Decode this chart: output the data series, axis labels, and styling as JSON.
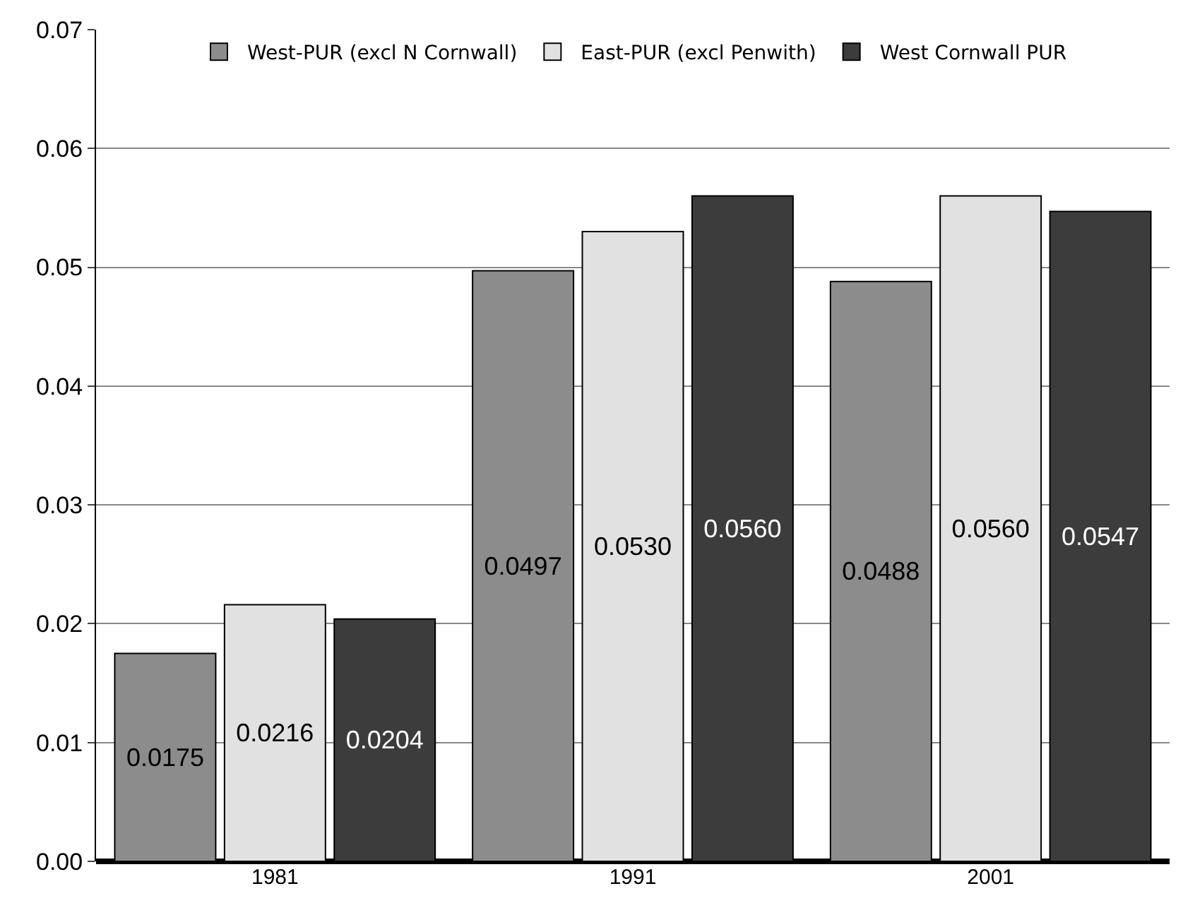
{
  "chart_data": {
    "type": "bar",
    "categories": [
      "1981",
      "1991",
      "2001"
    ],
    "series": [
      {
        "name": "West-PUR (excl N Cornwall)",
        "color": "#8c8c8c",
        "values": [
          0.0175,
          0.0497,
          0.0488
        ],
        "value_labels": [
          "0.0175",
          "0.0497",
          "0.0488"
        ]
      },
      {
        "name": "East-PUR (excl Penwith)",
        "color": "#e1e1e1",
        "values": [
          0.0216,
          0.053,
          0.056
        ],
        "value_labels": [
          "0.0216",
          "0.0530",
          "0.0560"
        ]
      },
      {
        "name": "West Cornwall PUR",
        "color": "#3c3c3c",
        "values": [
          0.0204,
          0.056,
          0.0547
        ],
        "value_labels": [
          "0.0204",
          "0.0560",
          "0.0547"
        ]
      }
    ],
    "ylim": [
      0,
      0.07
    ],
    "yticks": [
      {
        "value": 0,
        "label": "0.00"
      },
      0.01,
      0.02,
      0.03,
      0.04,
      0.05,
      0.06,
      0.07
    ],
    "grid": "y",
    "legend": "top"
  }
}
